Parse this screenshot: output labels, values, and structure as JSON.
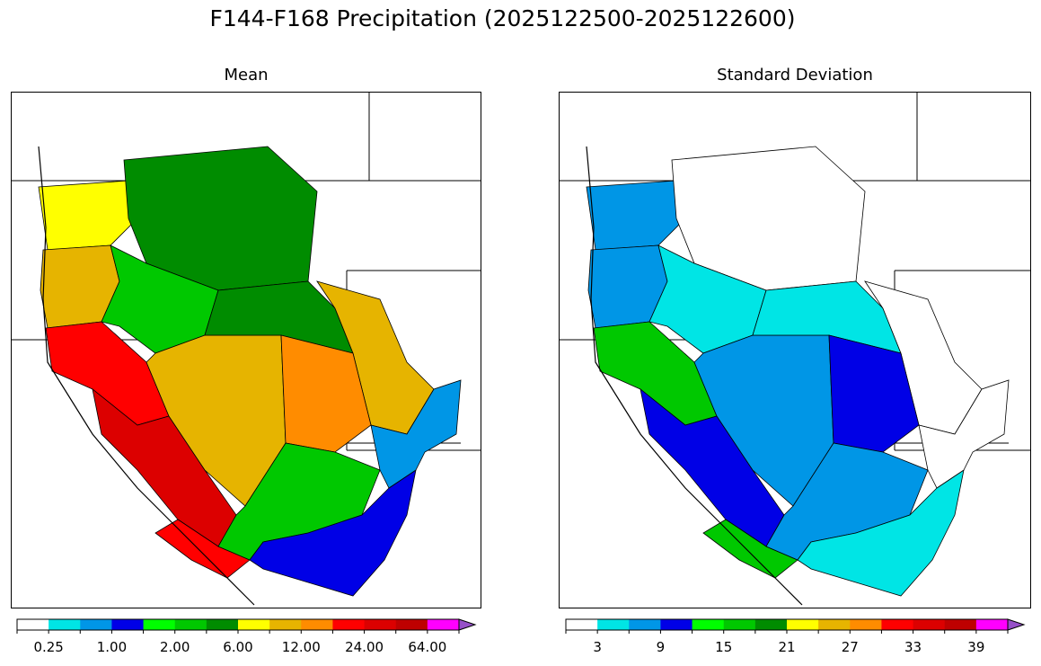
{
  "figure": {
    "title": "F144-F168 Precipitation (2025122500-2025122600)"
  },
  "colors": {
    "levels": [
      "#ffffff",
      "#00e5e5",
      "#0096e6",
      "#0000e6",
      "#00ff00",
      "#00c800",
      "#008c00",
      "#ffff00",
      "#e6b400",
      "#ff8c00",
      "#ff0000",
      "#dc0000",
      "#be0000",
      "#ff00ff",
      "#9650c8"
    ],
    "border": "#000000"
  },
  "chart_data": [
    {
      "type": "heatmap",
      "title": "Mean",
      "colorbar": {
        "bins": 15,
        "extend": "max",
        "tick_labels": [
          "0.25",
          "1.00",
          "2.00",
          "6.00",
          "12.00",
          "24.00",
          "64.00"
        ],
        "tick_bin_edges": [
          1,
          3,
          5,
          7,
          9,
          11,
          13
        ]
      },
      "regions": [
        {
          "region": "northern-washington-coast",
          "level": 7
        },
        {
          "region": "oregon-coast-range",
          "level": 8
        },
        {
          "region": "northern-california-coast",
          "level": 10
        },
        {
          "region": "sierra-nevada",
          "level": 11
        },
        {
          "region": "southern-california-mountains",
          "level": 10
        },
        {
          "region": "northern-rockies",
          "level": 6
        },
        {
          "region": "idaho-central",
          "level": 5
        },
        {
          "region": "great-basin-nevada",
          "level": 8
        },
        {
          "region": "wyoming-colorado-rockies",
          "level": 6
        },
        {
          "region": "colorado-front-range",
          "level": 8
        },
        {
          "region": "utah-wasatch",
          "level": 9
        },
        {
          "region": "arizona-rim",
          "level": 5
        },
        {
          "region": "southern-arizona",
          "level": 3
        },
        {
          "region": "new-mexico-south",
          "level": 2
        }
      ]
    },
    {
      "type": "heatmap",
      "title": "Standard Deviation",
      "colorbar": {
        "bins": 15,
        "extend": "max",
        "tick_labels": [
          "3",
          "9",
          "15",
          "21",
          "27",
          "33",
          "39"
        ],
        "tick_bin_edges": [
          1,
          3,
          5,
          7,
          9,
          11,
          13
        ]
      },
      "regions": [
        {
          "region": "northern-washington-coast",
          "level": 2
        },
        {
          "region": "oregon-coast-range",
          "level": 2
        },
        {
          "region": "northern-california-coast",
          "level": 5
        },
        {
          "region": "sierra-nevada",
          "level": 3
        },
        {
          "region": "southern-california-mountains",
          "level": 5
        },
        {
          "region": "northern-rockies",
          "level": 0
        },
        {
          "region": "idaho-central",
          "level": 1
        },
        {
          "region": "great-basin-nevada",
          "level": 2
        },
        {
          "region": "wyoming-colorado-rockies",
          "level": 1
        },
        {
          "region": "colorado-front-range",
          "level": 0
        },
        {
          "region": "utah-wasatch",
          "level": 3
        },
        {
          "region": "arizona-rim",
          "level": 2
        },
        {
          "region": "southern-arizona",
          "level": 1
        },
        {
          "region": "new-mexico-south",
          "level": 0
        }
      ]
    }
  ]
}
